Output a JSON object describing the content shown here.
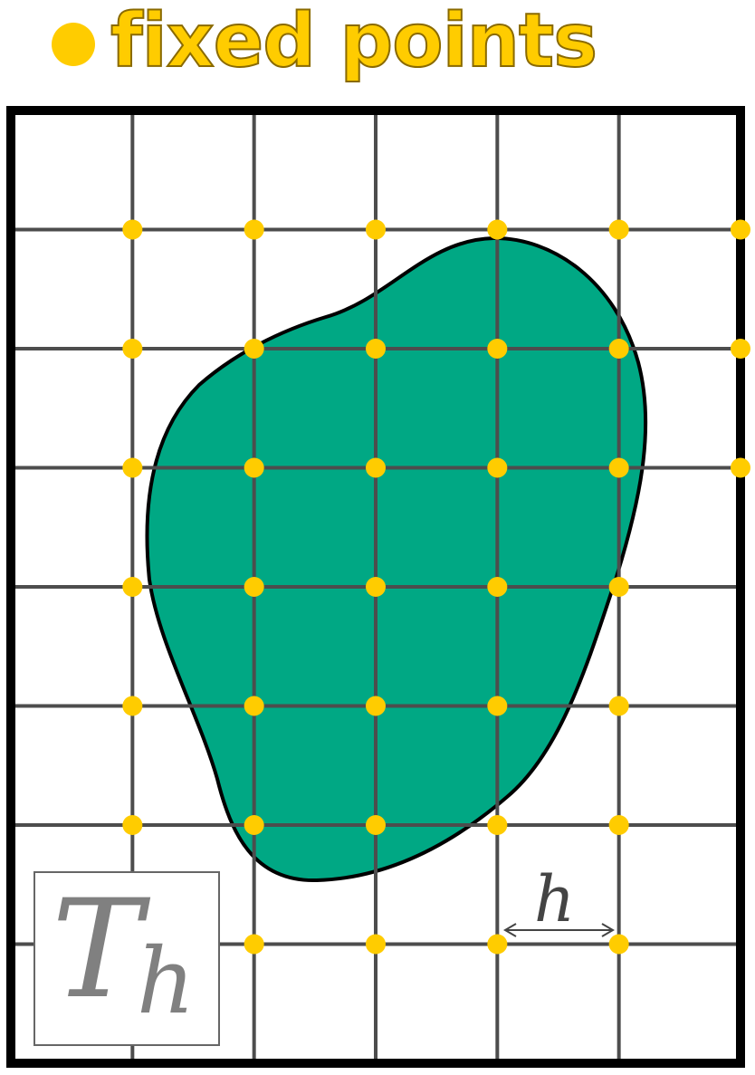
{
  "legend": {
    "label": "fixed points",
    "marker_icon": "filled-circle"
  },
  "mesh": {
    "symbol": "T",
    "symbol_subscript": "h",
    "spacing_label": "h",
    "columns": 6,
    "rows": 8
  },
  "colors": {
    "fixed_point": "#ffcc00",
    "domain_fill": "#00a884",
    "grid_line": "#4d4d4d",
    "frame": "#000000",
    "label_gray": "#808080"
  }
}
